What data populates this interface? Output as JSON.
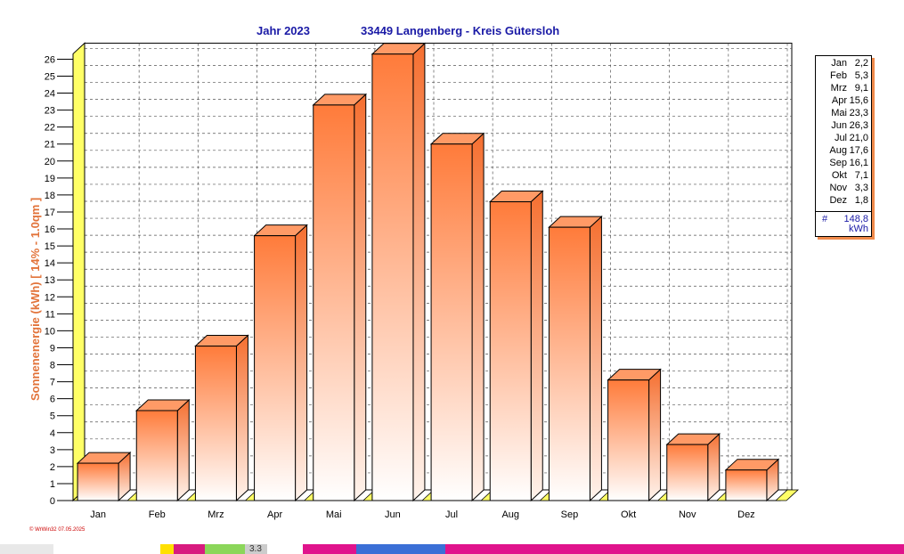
{
  "chart_data": {
    "type": "bar",
    "title_year": "Jahr  2023",
    "title_location": "33449 Langenberg - Kreis Gütersloh",
    "ylabel": "Sonnenenergie  (kWh)    [ 14% - 1.0qm ]",
    "xlabel": "",
    "ylim": [
      0,
      26
    ],
    "yticks": [
      "0",
      "1",
      "2",
      "3",
      "4",
      "5",
      "6",
      "7",
      "8",
      "9",
      "10",
      "11",
      "12",
      "13",
      "14",
      "15",
      "16",
      "17",
      "18",
      "19",
      "20",
      "21",
      "22",
      "23",
      "24",
      "25",
      "26"
    ],
    "categories": [
      "Jan",
      "Feb",
      "Mrz",
      "Apr",
      "Mai",
      "Jun",
      "Jul",
      "Aug",
      "Sep",
      "Okt",
      "Nov",
      "Dez"
    ],
    "values": [
      2.2,
      5.3,
      9.1,
      15.6,
      23.3,
      26.3,
      21.0,
      17.6,
      16.1,
      7.1,
      3.3,
      1.8
    ],
    "grid": true,
    "legend_placement": "right",
    "colors": {
      "title": "#1a1aa6",
      "ylabel": "#e2733a",
      "bar_top": "#ff7f3f",
      "bar_bottom": "#ffffff",
      "floor": "#ffff66"
    }
  },
  "legend": {
    "months": [
      "Jan",
      "Feb",
      "Mrz",
      "Apr",
      "Mai",
      "Jun",
      "Jul",
      "Aug",
      "Sep",
      "Okt",
      "Nov",
      "Dez"
    ],
    "values": [
      "2,2",
      "5,3",
      "9,1",
      "15,6",
      "23,3",
      "26,3",
      "21,0",
      "17,6",
      "16,1",
      "7,1",
      "3,3",
      "1,8"
    ],
    "total_symbol": "#",
    "total": "148,8",
    "unit": "kWh"
  },
  "footer": {
    "credit": "© WrWin32  07.05.2025",
    "strip_value": "3.3"
  }
}
